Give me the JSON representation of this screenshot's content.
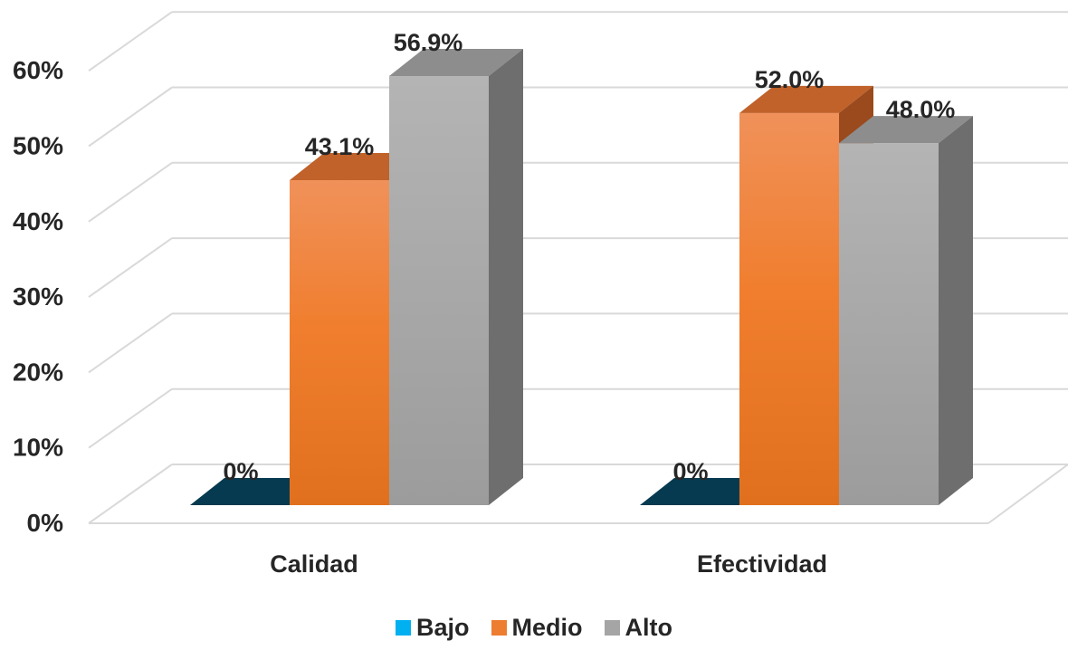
{
  "chart_data": {
    "type": "bar",
    "categories": [
      "Calidad",
      "Efectividad"
    ],
    "series": [
      {
        "name": "Bajo",
        "values": [
          0,
          0
        ],
        "color": "#00B0F0",
        "labels": [
          "0%",
          "0%"
        ]
      },
      {
        "name": "Medio",
        "values": [
          43.1,
          52.0
        ],
        "color": "#ED7D31",
        "labels": [
          "43.1%",
          "52.0%"
        ]
      },
      {
        "name": "Alto",
        "values": [
          56.9,
          48.0
        ],
        "color": "#A5A5A5",
        "labels": [
          "56.9%",
          "48.0%"
        ]
      }
    ],
    "y_ticks": [
      "0%",
      "10%",
      "20%",
      "30%",
      "40%",
      "50%",
      "60%"
    ],
    "ylim": [
      0,
      70
    ],
    "grid": true,
    "legend_position": "bottom",
    "style": "3d-clustered-column"
  }
}
